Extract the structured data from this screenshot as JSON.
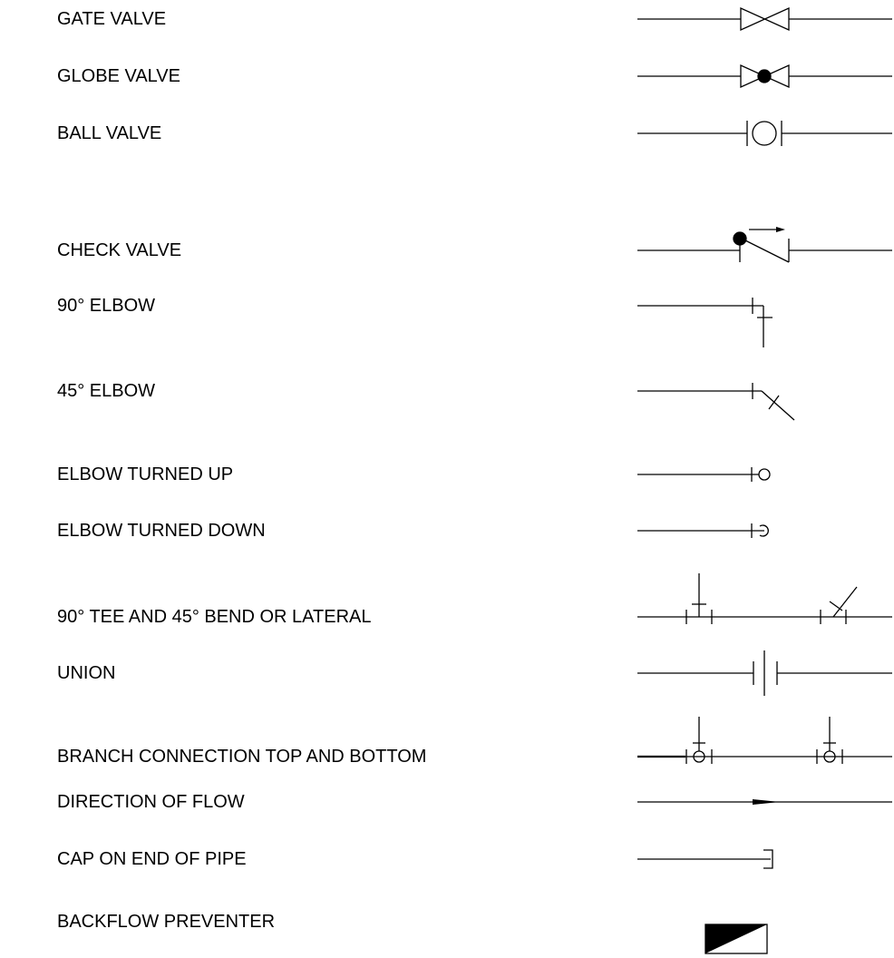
{
  "legend": {
    "rows": [
      {
        "id": "gate-valve",
        "label": "GATE VALVE",
        "symbol": "gate-valve-icon"
      },
      {
        "id": "globe-valve",
        "label": "GLOBE VALVE",
        "symbol": "globe-valve-icon"
      },
      {
        "id": "ball-valve",
        "label": "BALL VALVE",
        "symbol": "ball-valve-icon"
      },
      {
        "id": "check-valve",
        "label": "CHECK VALVE",
        "symbol": "check-valve-icon"
      },
      {
        "id": "elbow-90",
        "label": "90° ELBOW",
        "symbol": "elbow-90-icon"
      },
      {
        "id": "elbow-45",
        "label": "45° ELBOW",
        "symbol": "elbow-45-icon"
      },
      {
        "id": "elbow-turned-up",
        "label": "ELBOW TURNED UP",
        "symbol": "elbow-turned-up-icon"
      },
      {
        "id": "elbow-turned-down",
        "label": "ELBOW TURNED DOWN",
        "symbol": "elbow-turned-down-icon"
      },
      {
        "id": "tee-and-lateral",
        "label": "90° TEE AND 45° BEND OR LATERAL",
        "symbol": "tee-and-lateral-icon"
      },
      {
        "id": "union",
        "label": "UNION",
        "symbol": "union-icon"
      },
      {
        "id": "branch-connection",
        "label": "BRANCH CONNECTION TOP AND BOTTOM",
        "symbol": "branch-connection-icon"
      },
      {
        "id": "direction-of-flow",
        "label": "DIRECTION OF FLOW",
        "symbol": "flow-arrow-icon"
      },
      {
        "id": "cap-on-end",
        "label": "CAP ON END OF PIPE",
        "symbol": "pipe-cap-icon"
      },
      {
        "id": "backflow-preventer",
        "label": "BACKFLOW PREVENTER",
        "symbol": "backflow-preventer-icon"
      }
    ]
  },
  "style": {
    "line_color": "#000000",
    "fill_color": "#000000",
    "background": "#ffffff"
  }
}
